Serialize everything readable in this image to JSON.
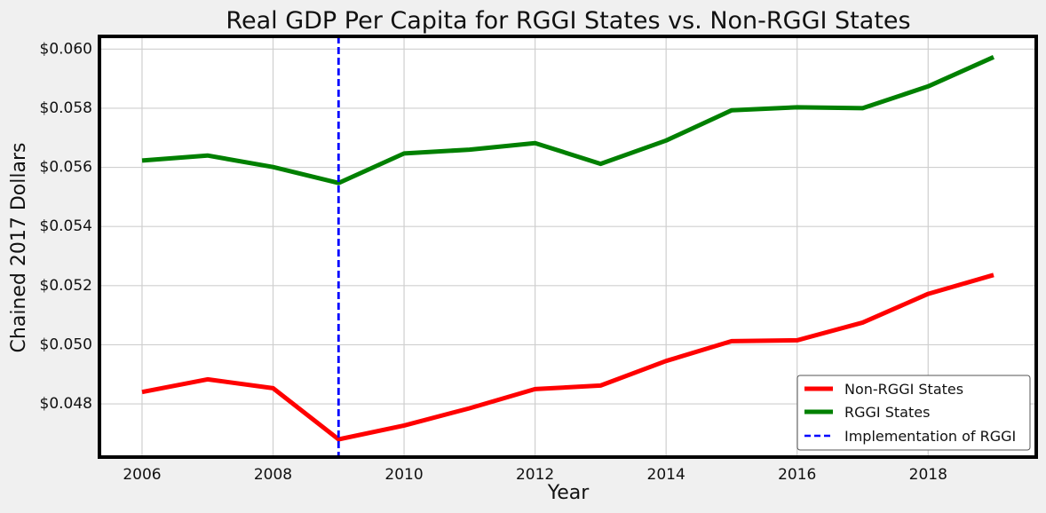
{
  "chart_data": {
    "type": "line",
    "title": "Real GDP Per Capita for RGGI States vs. Non-RGGI States",
    "xlabel": "Year",
    "ylabel": "Chained 2017 Dollars",
    "x": [
      2006,
      2007,
      2008,
      2009,
      2010,
      2011,
      2012,
      2013,
      2014,
      2015,
      2016,
      2017,
      2018,
      2019
    ],
    "xlim": [
      2005.35,
      2019.65
    ],
    "ylim": [
      0.0462,
      0.06043
    ],
    "xticks": [
      2006,
      2008,
      2010,
      2012,
      2014,
      2016,
      2018
    ],
    "xtick_labels": [
      "2006",
      "2008",
      "2010",
      "2012",
      "2014",
      "2016",
      "2018"
    ],
    "yticks": [
      0.048,
      0.05,
      0.052,
      0.054,
      0.056,
      0.058,
      0.06
    ],
    "ytick_labels": [
      "$0.048",
      "$0.050",
      "$0.052",
      "$0.054",
      "$0.056",
      "$0.058",
      "$0.060"
    ],
    "grid": true,
    "legend_position": "bottom-right",
    "series": [
      {
        "name": "Non-RGGI States",
        "color": "#ff0000",
        "values": [
          0.0484,
          0.04883,
          0.04853,
          0.0468,
          0.04727,
          0.04785,
          0.0485,
          0.04862,
          0.04945,
          0.05012,
          0.05015,
          0.05075,
          0.05172,
          0.05236
        ]
      },
      {
        "name": "RGGI States",
        "color": "#008000",
        "values": [
          0.05623,
          0.0564,
          0.05601,
          0.05547,
          0.05647,
          0.0566,
          0.05682,
          0.05612,
          0.05691,
          0.05793,
          0.05803,
          0.058,
          0.05874,
          0.05973
        ]
      }
    ],
    "vline": {
      "name": "Implementation of RGGI",
      "x": 2009,
      "color": "#0000ff",
      "style": "dashed"
    }
  }
}
